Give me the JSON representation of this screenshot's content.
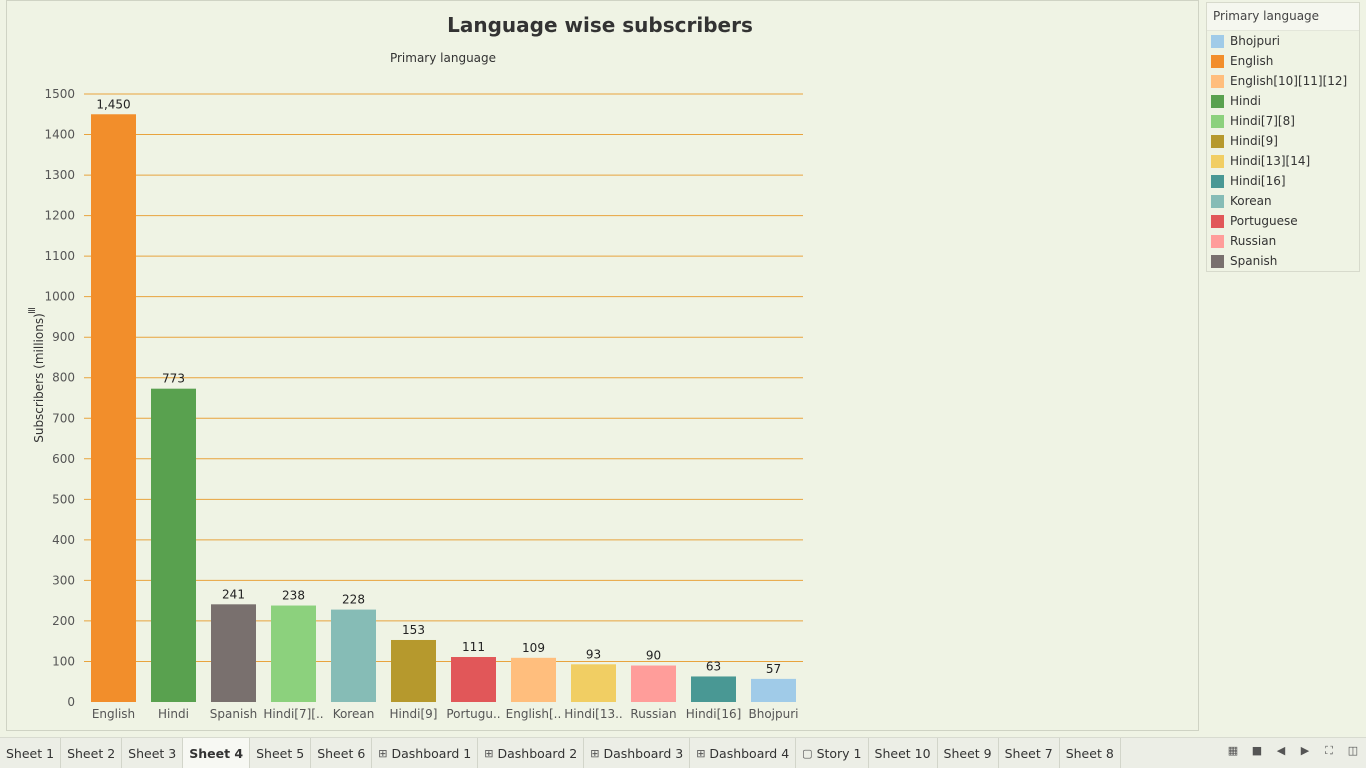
{
  "chart_data": {
    "type": "bar",
    "title": "Language wise subscribers",
    "column_header": "Primary language",
    "ylabel": "Subscribers (millions)",
    "ylim": [
      0,
      1500
    ],
    "yticks": [
      0,
      100,
      200,
      300,
      400,
      500,
      600,
      700,
      800,
      900,
      1000,
      1100,
      1200,
      1300,
      1400,
      1500
    ],
    "grid": true,
    "categories": [
      "English",
      "Hindi",
      "Spanish",
      "Hindi[7][8]",
      "Korean",
      "Hindi[9]",
      "Portuguese",
      "English[10][11][12]",
      "Hindi[13][14]",
      "Russian",
      "Hindi[16]",
      "Bhojpuri"
    ],
    "category_labels": [
      "English",
      "Hindi",
      "Spanish",
      "Hindi[7][..",
      "Korean",
      "Hindi[9]",
      "Portugu..",
      "English[..",
      "Hindi[13..",
      "Russian",
      "Hindi[16]",
      "Bhojpuri"
    ],
    "values": [
      1450,
      773,
      241,
      238,
      228,
      153,
      111,
      109,
      93,
      90,
      63,
      57
    ],
    "value_labels": [
      "1,450",
      "773",
      "241",
      "238",
      "228",
      "153",
      "111",
      "109",
      "93",
      "90",
      "63",
      "57"
    ],
    "colors": [
      "#f28e2b",
      "#59a14f",
      "#79706e",
      "#8cd17d",
      "#86bcb6",
      "#b6992d",
      "#e15759",
      "#ffbe7d",
      "#f1ce63",
      "#ff9d9a",
      "#499894",
      "#a0cbe8"
    ],
    "gridline_color": "#e8a33d",
    "legend": {
      "title": "Primary language",
      "placement": "right",
      "items": [
        {
          "label": "Bhojpuri",
          "color": "#a0cbe8"
        },
        {
          "label": "English",
          "color": "#f28e2b"
        },
        {
          "label": "English[10][11][12]",
          "color": "#ffbe7d"
        },
        {
          "label": "Hindi",
          "color": "#59a14f"
        },
        {
          "label": "Hindi[7][8]",
          "color": "#8cd17d"
        },
        {
          "label": "Hindi[9]",
          "color": "#b6992d"
        },
        {
          "label": "Hindi[13][14]",
          "color": "#f1ce63"
        },
        {
          "label": "Hindi[16]",
          "color": "#499894"
        },
        {
          "label": "Korean",
          "color": "#86bcb6"
        },
        {
          "label": "Portuguese",
          "color": "#e15759"
        },
        {
          "label": "Russian",
          "color": "#ff9d9a"
        },
        {
          "label": "Spanish",
          "color": "#79706e"
        }
      ]
    }
  },
  "tabs": [
    {
      "label": "Sheet 1",
      "icon": ""
    },
    {
      "label": "Sheet 2",
      "icon": ""
    },
    {
      "label": "Sheet 3",
      "icon": ""
    },
    {
      "label": "Sheet 4",
      "icon": "",
      "active": true
    },
    {
      "label": "Sheet 5",
      "icon": ""
    },
    {
      "label": "Sheet 6",
      "icon": ""
    },
    {
      "label": "Dashboard 1",
      "icon": "dashboard-icon"
    },
    {
      "label": "Dashboard 2",
      "icon": "dashboard-icon"
    },
    {
      "label": "Dashboard 3",
      "icon": "dashboard-icon"
    },
    {
      "label": "Dashboard 4",
      "icon": "dashboard-icon"
    },
    {
      "label": "Story 1",
      "icon": "story-icon"
    },
    {
      "label": "Sheet 10",
      "icon": ""
    },
    {
      "label": "Sheet 9",
      "icon": ""
    },
    {
      "label": "Sheet 7",
      "icon": ""
    },
    {
      "label": "Sheet 8",
      "icon": ""
    }
  ],
  "controls": [
    "show-sheet-sorter-icon",
    "show-filmstrip-icon",
    "previous-sheet-icon",
    "next-sheet-icon",
    "fullscreen-icon",
    "presentation-mode-icon"
  ]
}
